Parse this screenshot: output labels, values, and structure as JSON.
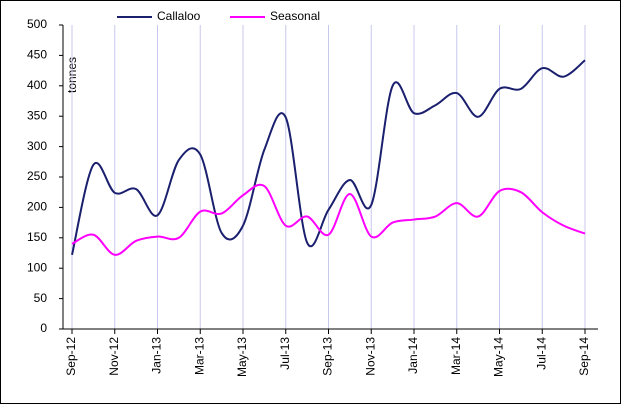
{
  "chart_data": {
    "type": "line",
    "y_label": "tonnes",
    "categories": [
      "Sep-12",
      null,
      "Nov-12",
      null,
      "Jan-13",
      null,
      "Mar-13",
      null,
      "May-13",
      null,
      "Jul-13",
      null,
      "Sep-13",
      null,
      "Nov-13",
      null,
      "Jan-14",
      null,
      "Mar-14",
      null,
      "May-14",
      null,
      "Jul-14",
      null,
      "Sep-14"
    ],
    "series": [
      {
        "name": "Callaloo",
        "color": "#1a1f6e",
        "values": [
          122,
          270,
          224,
          230,
          187,
          278,
          287,
          158,
          170,
          295,
          348,
          142,
          196,
          245,
          204,
          400,
          355,
          368,
          388,
          349,
          395,
          395,
          429,
          415,
          442
        ]
      },
      {
        "name": "Seasonal",
        "color": "#ff00ff",
        "values": [
          140,
          155,
          122,
          145,
          152,
          150,
          193,
          190,
          220,
          235,
          170,
          185,
          155,
          222,
          152,
          175,
          180,
          185,
          207,
          185,
          227,
          225,
          192,
          170,
          157
        ]
      }
    ],
    "ylim": [
      0,
      500
    ],
    "yticks": [
      0,
      50,
      100,
      150,
      200,
      250,
      300,
      350,
      400,
      450,
      500
    ],
    "grid": true,
    "legend": "top"
  }
}
